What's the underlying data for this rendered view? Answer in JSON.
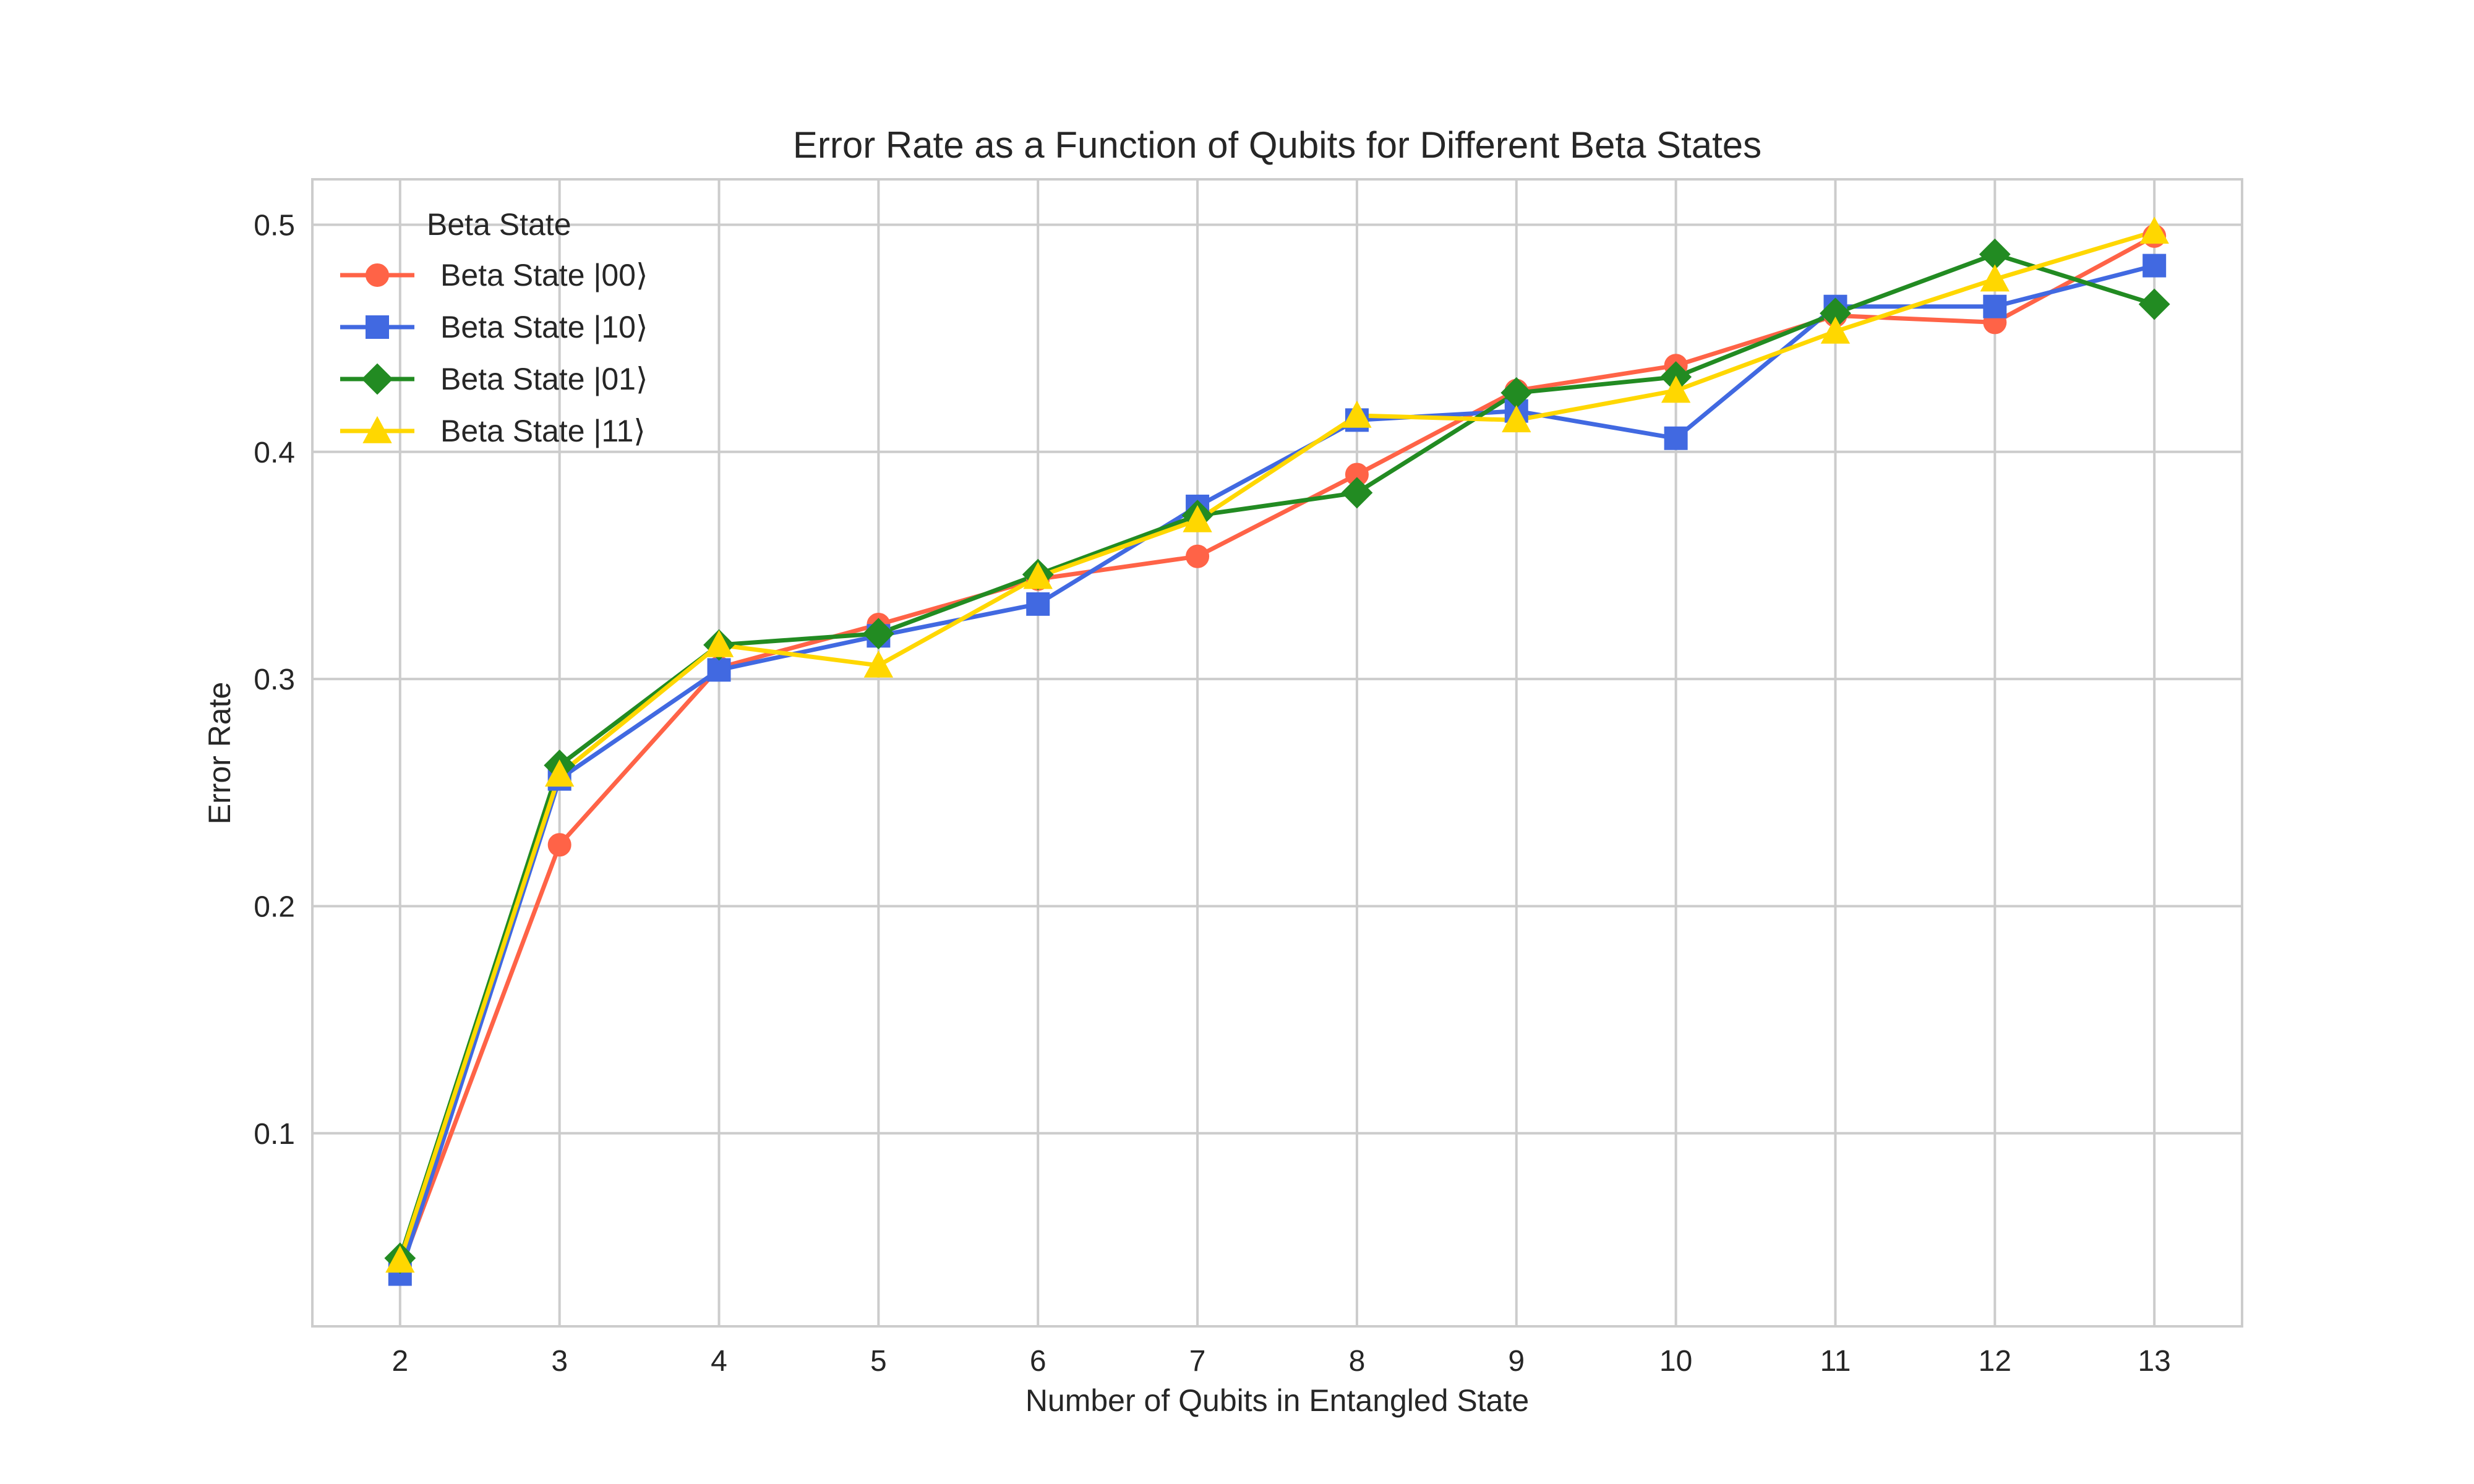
{
  "chart_data": {
    "type": "line",
    "title": "Error Rate as a Function of Qubits for Different Beta States",
    "xlabel": "Number of Qubits in Entangled State",
    "ylabel": "Error Rate",
    "x": [
      2,
      3,
      4,
      5,
      6,
      7,
      8,
      9,
      10,
      11,
      12,
      13
    ],
    "x_ticks": [
      "2",
      "3",
      "4",
      "5",
      "6",
      "7",
      "8",
      "9",
      "10",
      "11",
      "12",
      "13"
    ],
    "xlim": [
      1.45,
      13.55
    ],
    "ylim": [
      0.015,
      0.52
    ],
    "y_ticks": [
      0.1,
      0.2,
      0.3,
      0.4,
      0.5
    ],
    "y_tick_labels": [
      "0.1",
      "0.2",
      "0.3",
      "0.4",
      "0.5"
    ],
    "grid": true,
    "legend_title": "Beta State",
    "legend_position": "top-left",
    "series": [
      {
        "name": "Beta State |00⟩",
        "color": "#FF6347",
        "marker": "circle",
        "values": [
          0.04,
          0.227,
          0.305,
          0.324,
          0.344,
          0.354,
          0.39,
          0.427,
          0.438,
          0.46,
          0.457,
          0.495
        ]
      },
      {
        "name": "Beta State |10⟩",
        "color": "#4169E1",
        "marker": "square",
        "values": [
          0.038,
          0.256,
          0.304,
          0.319,
          0.333,
          0.376,
          0.414,
          0.418,
          0.406,
          0.464,
          0.464,
          0.482
        ]
      },
      {
        "name": "Beta State |01⟩",
        "color": "#228B22",
        "marker": "diamond",
        "values": [
          0.045,
          0.262,
          0.315,
          0.32,
          0.346,
          0.372,
          0.382,
          0.426,
          0.433,
          0.461,
          0.487,
          0.465
        ]
      },
      {
        "name": "Beta State |11⟩",
        "color": "#FFD700",
        "marker": "triangle",
        "values": [
          0.044,
          0.258,
          0.315,
          0.306,
          0.345,
          0.37,
          0.416,
          0.414,
          0.427,
          0.453,
          0.476,
          0.497
        ]
      }
    ]
  }
}
